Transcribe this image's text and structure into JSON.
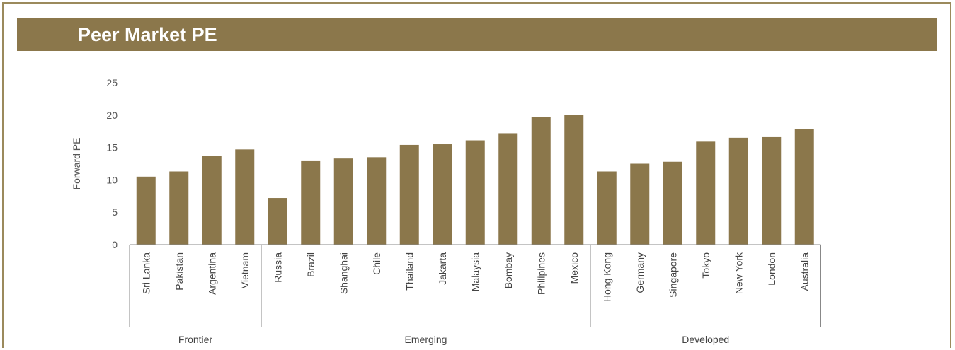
{
  "title": "Peer Market PE",
  "colors": {
    "bar": "#8b774b",
    "frame": "#9b8a5c",
    "axis": "#888888"
  },
  "chart_data": {
    "type": "bar",
    "title": "Peer Market PE",
    "xlabel": "",
    "ylabel": "Forward PE",
    "ylim": [
      0,
      25
    ],
    "yticks": [
      0,
      5,
      10,
      15,
      20,
      25
    ],
    "grid": false,
    "categories": [
      "Sri Lanka",
      "Pakistan",
      "Argentina",
      "Vietnam",
      "Russia",
      "Brazil",
      "Shanghai",
      "Chile",
      "Thailand",
      "Jakarta",
      "Malaysia",
      "Bombay",
      "Philipines",
      "Mexico",
      "Hong Kong",
      "Germany",
      "Singapore",
      "Tokyo",
      "New York",
      "London",
      "Australia"
    ],
    "values": [
      10.5,
      11.3,
      13.7,
      14.7,
      7.2,
      13.0,
      13.3,
      13.5,
      15.4,
      15.5,
      16.1,
      17.2,
      19.7,
      20.0,
      11.3,
      12.5,
      12.8,
      15.9,
      16.5,
      16.6,
      17.8
    ],
    "groups": [
      {
        "name": "Frontier",
        "count": 4
      },
      {
        "name": "Emerging",
        "count": 10
      },
      {
        "name": "Developed",
        "count": 7
      }
    ]
  }
}
